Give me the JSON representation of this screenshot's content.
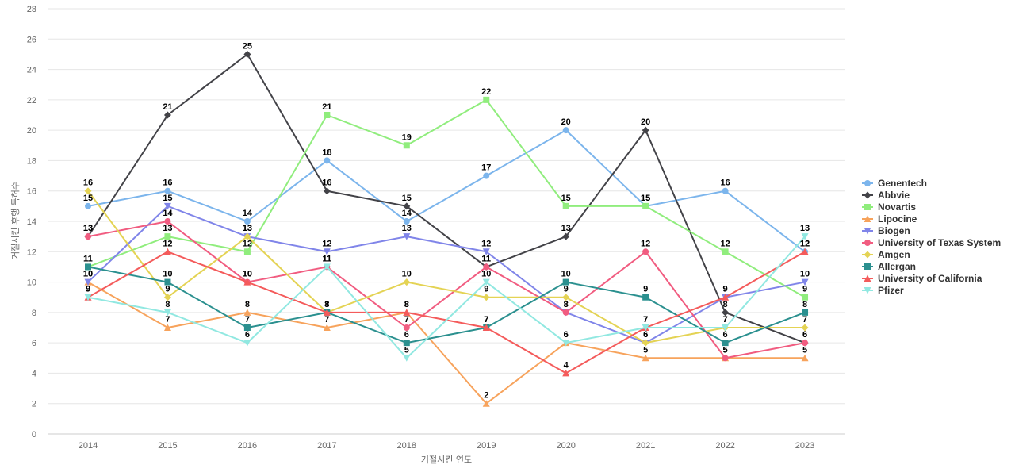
{
  "chart_data": {
    "type": "line",
    "title": "",
    "xlabel": "거절시킨 연도",
    "ylabel": "거절시킨 후행 특허수",
    "ylim": [
      0,
      28
    ],
    "yticks": [
      0,
      2,
      4,
      6,
      8,
      10,
      12,
      14,
      16,
      18,
      20,
      22,
      24,
      26,
      28
    ],
    "categories": [
      "2014",
      "2015",
      "2016",
      "2017",
      "2018",
      "2019",
      "2020",
      "2021",
      "2022",
      "2023"
    ],
    "grid": true,
    "legend_position": "right",
    "series": [
      {
        "name": "Genentech",
        "color": "#7cb5ec",
        "marker": "circle",
        "values": [
          15,
          16,
          14,
          18,
          14,
          17,
          20,
          15,
          16,
          12
        ]
      },
      {
        "name": "Abbvie",
        "color": "#434348",
        "marker": "diamond",
        "values": [
          13,
          21,
          25,
          16,
          15,
          11,
          13,
          20,
          8,
          6
        ]
      },
      {
        "name": "Novartis",
        "color": "#90ed7d",
        "marker": "square",
        "values": [
          11,
          13,
          12,
          21,
          19,
          22,
          15,
          15,
          12,
          9
        ]
      },
      {
        "name": "Lipocine",
        "color": "#f7a35c",
        "marker": "triangle",
        "values": [
          10,
          7,
          8,
          7,
          8,
          2,
          6,
          5,
          5,
          5
        ]
      },
      {
        "name": "Biogen",
        "color": "#8085e9",
        "marker": "triangle-down",
        "values": [
          10,
          15,
          13,
          12,
          13,
          12,
          8,
          6,
          9,
          10
        ]
      },
      {
        "name": "University of Texas System",
        "color": "#f15c80",
        "marker": "circle",
        "values": [
          13,
          14,
          10,
          11,
          7,
          11,
          8,
          12,
          5,
          6
        ]
      },
      {
        "name": "Amgen",
        "color": "#e4d354",
        "marker": "diamond",
        "values": [
          16,
          9,
          13,
          8,
          10,
          9,
          9,
          6,
          7,
          7
        ]
      },
      {
        "name": "Allergan",
        "color": "#2b908f",
        "marker": "square",
        "values": [
          11,
          10,
          7,
          8,
          6,
          7,
          10,
          9,
          6,
          8
        ]
      },
      {
        "name": "University of California",
        "color": "#f45b5b",
        "marker": "triangle",
        "values": [
          9,
          12,
          10,
          8,
          8,
          7,
          4,
          7,
          9,
          12
        ]
      },
      {
        "name": "Pfizer",
        "color": "#91e8e1",
        "marker": "triangle-down",
        "values": [
          9,
          8,
          6,
          11,
          5,
          10,
          6,
          7,
          7,
          13
        ]
      }
    ]
  }
}
